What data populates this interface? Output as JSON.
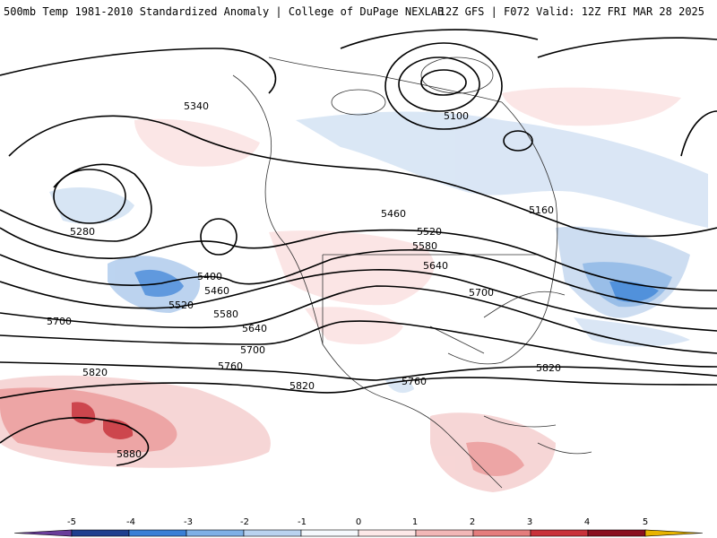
{
  "header": {
    "title_left": "500mb Temp 1981-2010 Standardized Anomaly | College of DuPage NEXLAB",
    "title_right": "12Z GFS | F072 Valid: 12Z FRI MAR 28 2025"
  },
  "contour_labels": [
    "5340",
    "5100",
    "5280",
    "5160",
    "5460",
    "5520",
    "5580",
    "5640",
    "5400",
    "5460",
    "5520",
    "5580",
    "5640",
    "5700",
    "5700",
    "5700",
    "5760",
    "5820",
    "5760",
    "5820",
    "5820",
    "5880"
  ],
  "colorbar": {
    "ticks": [
      "-5",
      "-4",
      "-3",
      "-2",
      "-1",
      "0",
      "1",
      "2",
      "3",
      "4",
      "5"
    ],
    "colors": [
      "#6a3d9a",
      "#1f3f8f",
      "#3a7fd6",
      "#7fb0e6",
      "#b9d2ef",
      "#f4f8fc",
      "#fde8e8",
      "#f2b7b7",
      "#e47d7d",
      "#c8323a",
      "#8a1020",
      "#e8b400"
    ]
  }
}
